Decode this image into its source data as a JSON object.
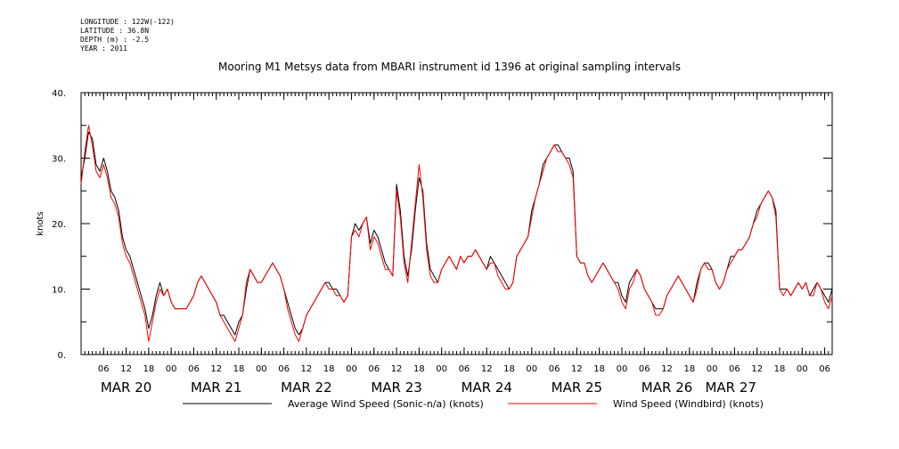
{
  "meta": {
    "longitude": "LONGITUDE : 122W(-122)",
    "latitude": "LATITUDE : 36.8N",
    "depth": "DEPTH (m) : -2.5",
    "year": "YEAR : 2011"
  },
  "chart_data": {
    "type": "line",
    "title": "Mooring M1 Metsys data from MBARI instrument id 1396 at original sampling intervals",
    "ylabel": "knots",
    "xlabel": "",
    "ylim": [
      0,
      40
    ],
    "y_ticks": [
      0,
      10,
      20,
      30,
      40
    ],
    "y_tick_labels": [
      "0.",
      "10.",
      "20.",
      "30.",
      "40."
    ],
    "x_range_hours": [
      0,
      200
    ],
    "hour_ticks": [
      {
        "hour": 6,
        "label": "06"
      },
      {
        "hour": 12,
        "label": "12"
      },
      {
        "hour": 18,
        "label": "18"
      },
      {
        "hour": 24,
        "label": "00"
      },
      {
        "hour": 30,
        "label": "06"
      },
      {
        "hour": 36,
        "label": "12"
      },
      {
        "hour": 42,
        "label": "18"
      },
      {
        "hour": 48,
        "label": "00"
      },
      {
        "hour": 54,
        "label": "06"
      },
      {
        "hour": 60,
        "label": "12"
      },
      {
        "hour": 66,
        "label": "18"
      },
      {
        "hour": 72,
        "label": "00"
      },
      {
        "hour": 78,
        "label": "06"
      },
      {
        "hour": 84,
        "label": "12"
      },
      {
        "hour": 90,
        "label": "18"
      },
      {
        "hour": 96,
        "label": "00"
      },
      {
        "hour": 102,
        "label": "06"
      },
      {
        "hour": 108,
        "label": "12"
      },
      {
        "hour": 114,
        "label": "18"
      },
      {
        "hour": 120,
        "label": "00"
      },
      {
        "hour": 126,
        "label": "06"
      },
      {
        "hour": 132,
        "label": "12"
      },
      {
        "hour": 138,
        "label": "18"
      },
      {
        "hour": 144,
        "label": "00"
      },
      {
        "hour": 150,
        "label": "06"
      },
      {
        "hour": 156,
        "label": "12"
      },
      {
        "hour": 162,
        "label": "18"
      },
      {
        "hour": 168,
        "label": "00"
      },
      {
        "hour": 174,
        "label": "06"
      },
      {
        "hour": 180,
        "label": "12"
      },
      {
        "hour": 186,
        "label": "18"
      },
      {
        "hour": 192,
        "label": "00"
      },
      {
        "hour": 198,
        "label": "06"
      }
    ],
    "day_labels": [
      {
        "hour": 12,
        "label": "MAR 20"
      },
      {
        "hour": 36,
        "label": "MAR 21"
      },
      {
        "hour": 60,
        "label": "MAR 22"
      },
      {
        "hour": 84,
        "label": "MAR 23"
      },
      {
        "hour": 108,
        "label": "MAR 24"
      },
      {
        "hour": 132,
        "label": "MAR 25"
      },
      {
        "hour": 156,
        "label": "MAR 26"
      },
      {
        "hour": 173,
        "label": "MAR 27"
      }
    ],
    "series": [
      {
        "name": "Average Wind Speed (Sonic-n/a) (knots)",
        "color": "#000000",
        "x": [
          0,
          1,
          2,
          3,
          4,
          5,
          6,
          7,
          8,
          9,
          10,
          11,
          12,
          13,
          14,
          15,
          16,
          17,
          18,
          19,
          20,
          21,
          22,
          23,
          24,
          25,
          26,
          27,
          28,
          29,
          30,
          31,
          32,
          33,
          34,
          35,
          36,
          37,
          38,
          39,
          40,
          41,
          42,
          43,
          44,
          45,
          46,
          47,
          48,
          49,
          50,
          51,
          52,
          53,
          54,
          55,
          56,
          57,
          58,
          59,
          60,
          61,
          62,
          63,
          64,
          65,
          66,
          67,
          68,
          69,
          70,
          71,
          72,
          73,
          74,
          75,
          76,
          77,
          78,
          79,
          80,
          81,
          82,
          83,
          84,
          85,
          86,
          87,
          88,
          89,
          90,
          91,
          92,
          93,
          94,
          95,
          96,
          97,
          98,
          99,
          100,
          101,
          102,
          103,
          104,
          105,
          106,
          107,
          108,
          109,
          110,
          111,
          112,
          113,
          114,
          115,
          116,
          117,
          118,
          119,
          120,
          121,
          122,
          123,
          124,
          125,
          126,
          127,
          128,
          129,
          130,
          131,
          132,
          133,
          134,
          135,
          136,
          137,
          138,
          139,
          140,
          141,
          142,
          143,
          144,
          145,
          146,
          147,
          148,
          149,
          150,
          151,
          152,
          153,
          154,
          155,
          156,
          157,
          158,
          159,
          160,
          161,
          162,
          163,
          164,
          165,
          166,
          167,
          168,
          169,
          170,
          171,
          172,
          173,
          174,
          175,
          176,
          177,
          178,
          179,
          180,
          181,
          182,
          183,
          184,
          185,
          186,
          187,
          188,
          189,
          190,
          191,
          192,
          193,
          194,
          195,
          196,
          197,
          198,
          199,
          200
        ],
        "values": [
          27,
          30,
          34,
          33,
          29,
          28,
          30,
          28,
          25,
          24,
          22,
          18,
          16,
          15,
          13,
          11,
          9,
          7,
          4,
          6,
          9,
          11,
          9,
          10,
          8,
          7,
          7,
          7,
          7,
          8,
          9,
          11,
          12,
          11,
          10,
          9,
          8,
          6,
          6,
          5,
          4,
          3,
          5,
          6,
          10,
          13,
          12,
          11,
          11,
          12,
          13,
          14,
          13,
          12,
          10,
          8,
          6,
          4,
          3,
          4,
          6,
          7,
          8,
          9,
          10,
          11,
          11,
          10,
          10,
          9,
          8,
          9,
          18,
          20,
          19,
          20,
          21,
          17,
          19,
          18,
          16,
          14,
          13,
          12,
          26,
          22,
          15,
          12,
          16,
          22,
          27,
          25,
          17,
          13,
          12,
          11,
          13,
          14,
          15,
          14,
          13,
          15,
          14,
          15,
          15,
          16,
          15,
          14,
          13,
          15,
          14,
          13,
          12,
          11,
          10,
          11,
          15,
          16,
          17,
          18,
          22,
          24,
          26,
          29,
          30,
          31,
          32,
          32,
          31,
          30,
          30,
          28,
          15,
          14,
          14,
          12,
          11,
          12,
          13,
          14,
          13,
          12,
          11,
          11,
          9,
          8,
          11,
          12,
          13,
          12,
          10,
          9,
          8,
          7,
          7,
          7,
          9,
          10,
          11,
          12,
          11,
          10,
          9,
          8,
          11,
          13,
          14,
          14,
          13,
          11,
          10,
          11,
          13,
          15,
          15,
          16,
          16,
          17,
          18,
          20,
          22,
          23,
          24,
          25,
          24,
          22,
          10,
          10,
          10,
          9,
          10,
          11,
          10,
          11,
          9,
          10,
          11,
          10,
          9,
          8,
          10
        ],
        "_note": ""
      },
      {
        "name": "Wind Speed (Windbird) (knots)",
        "color": "#ff0000",
        "x": [
          0,
          1,
          2,
          3,
          4,
          5,
          6,
          7,
          8,
          9,
          10,
          11,
          12,
          13,
          14,
          15,
          16,
          17,
          18,
          19,
          20,
          21,
          22,
          23,
          24,
          25,
          26,
          27,
          28,
          29,
          30,
          31,
          32,
          33,
          34,
          35,
          36,
          37,
          38,
          39,
          40,
          41,
          42,
          43,
          44,
          45,
          46,
          47,
          48,
          49,
          50,
          51,
          52,
          53,
          54,
          55,
          56,
          57,
          58,
          59,
          60,
          61,
          62,
          63,
          64,
          65,
          66,
          67,
          68,
          69,
          70,
          71,
          72,
          73,
          74,
          75,
          76,
          77,
          78,
          79,
          80,
          81,
          82,
          83,
          84,
          85,
          86,
          87,
          88,
          89,
          90,
          91,
          92,
          93,
          94,
          95,
          96,
          97,
          98,
          99,
          100,
          101,
          102,
          103,
          104,
          105,
          106,
          107,
          108,
          109,
          110,
          111,
          112,
          113,
          114,
          115,
          116,
          117,
          118,
          119,
          120,
          121,
          122,
          123,
          124,
          125,
          126,
          127,
          128,
          129,
          130,
          131,
          132,
          133,
          134,
          135,
          136,
          137,
          138,
          139,
          140,
          141,
          142,
          143,
          144,
          145,
          146,
          147,
          148,
          149,
          150,
          151,
          152,
          153,
          154,
          155,
          156,
          157,
          158,
          159,
          160,
          161,
          162,
          163,
          164,
          165,
          166,
          167,
          168,
          169,
          170,
          171,
          172,
          173,
          174,
          175,
          176,
          177,
          178,
          179,
          180,
          181,
          182,
          183,
          184,
          185,
          186,
          187,
          188,
          189,
          190,
          191,
          192,
          193,
          194,
          195,
          196,
          197,
          198,
          199,
          200
        ],
        "values": [
          26,
          31,
          35,
          32,
          28,
          27,
          29,
          27,
          24,
          23,
          21,
          17,
          15,
          14,
          12,
          10,
          8,
          6,
          2,
          5,
          8,
          10,
          9,
          10,
          8,
          7,
          7,
          7,
          7,
          8,
          9,
          11,
          12,
          11,
          10,
          9,
          8,
          6,
          5,
          4,
          3,
          2,
          4,
          6,
          11,
          13,
          12,
          11,
          11,
          12,
          13,
          14,
          13,
          12,
          10,
          7,
          5,
          3,
          2,
          4,
          6,
          7,
          8,
          9,
          10,
          11,
          10,
          10,
          9,
          9,
          8,
          9,
          18,
          19,
          18,
          20,
          21,
          16,
          18,
          17,
          15,
          13,
          13,
          12,
          25,
          21,
          14,
          11,
          17,
          23,
          29,
          24,
          16,
          12,
          11,
          11,
          13,
          14,
          15,
          14,
          13,
          15,
          14,
          15,
          15,
          16,
          15,
          14,
          13,
          14,
          14,
          12,
          11,
          10,
          10,
          11,
          15,
          16,
          17,
          18,
          21,
          24,
          26,
          28,
          30,
          31,
          32,
          31,
          31,
          30,
          29,
          27,
          15,
          14,
          14,
          12,
          11,
          12,
          13,
          14,
          13,
          12,
          11,
          10,
          8,
          7,
          10,
          11,
          13,
          12,
          10,
          9,
          8,
          6,
          6,
          7,
          9,
          10,
          11,
          12,
          11,
          10,
          9,
          8,
          10,
          13,
          14,
          13,
          13,
          11,
          10,
          11,
          13,
          14,
          15,
          16,
          16,
          17,
          18,
          20,
          21,
          23,
          24,
          25,
          24,
          21,
          10,
          9,
          10,
          9,
          10,
          11,
          10,
          11,
          9,
          9,
          11,
          10,
          8,
          7,
          9
        ],
        "_note": ""
      }
    ],
    "grid": false,
    "legend_placement": "bottom"
  }
}
